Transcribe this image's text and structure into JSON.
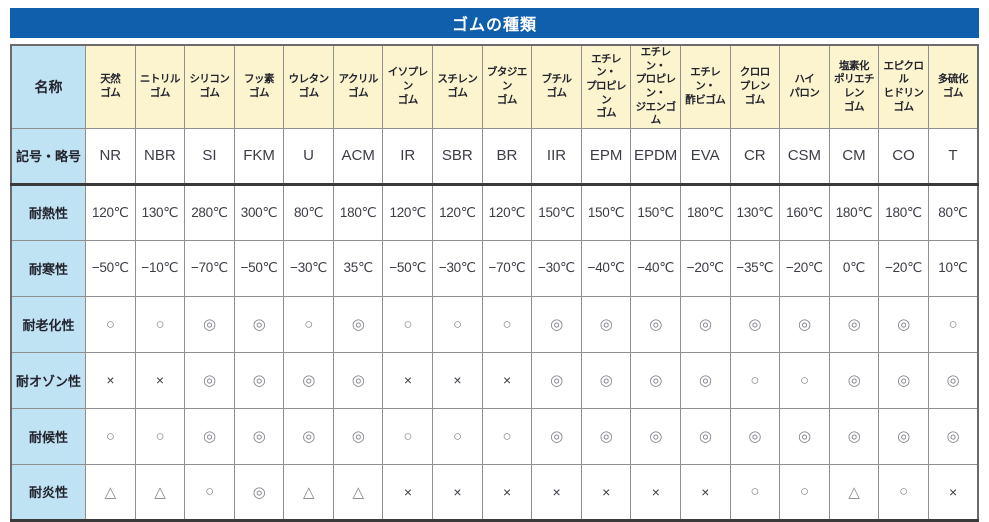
{
  "title": "ゴムの種類",
  "colors": {
    "title_bar_bg": "#0f5fad",
    "title_text": "#ffffff",
    "header_bg": "#fcf4cf",
    "row_label_bg": "#bfe3f3",
    "cell_text": "#3c3c46",
    "symbol_gray": "#83838d",
    "border_gray": "#8f8f8f",
    "heavy_border": "#3a3a3a"
  },
  "legend_symbols": {
    "excellent": "◎",
    "good": "○",
    "fair": "△",
    "poor": "×"
  },
  "table": {
    "corner_label": "名称",
    "columns": [
      "天然\nゴム",
      "ニトリル\nゴム",
      "シリコン\nゴム",
      "フッ素\nゴム",
      "ウレタン\nゴム",
      "アクリル\nゴム",
      "イソプレン\nゴム",
      "スチレン\nゴム",
      "ブタジエン\nゴム",
      "ブチル\nゴム",
      "エチレン・\nプロピレン\nゴム",
      "エチレン・\nプロピレン・\nジエンゴム",
      "エチレン・\n酢ビゴム",
      "クロロ\nプレン\nゴム",
      "ハイ\nパロン",
      "塩素化\nポリエチレン\nゴム",
      "エピクロル\nヒドリン\nゴム",
      "多硫化\nゴム"
    ],
    "rows": [
      {
        "label": "記号・略号",
        "kind": "code",
        "heavy_below": true,
        "values": [
          "NR",
          "NBR",
          "SI",
          "FKM",
          "U",
          "ACM",
          "IR",
          "SBR",
          "BR",
          "IIR",
          "EPM",
          "EPDM",
          "EVA",
          "CR",
          "CSM",
          "CM",
          "CO",
          "T"
        ]
      },
      {
        "label": "耐熱性",
        "kind": "temp",
        "heavy_below": false,
        "values": [
          "120℃",
          "130℃",
          "280℃",
          "300℃",
          "80℃",
          "180℃",
          "120℃",
          "120℃",
          "120℃",
          "150℃",
          "150℃",
          "150℃",
          "180℃",
          "130℃",
          "160℃",
          "180℃",
          "180℃",
          "80℃"
        ]
      },
      {
        "label": "耐寒性",
        "kind": "temp",
        "heavy_below": false,
        "values": [
          "−50℃",
          "−10℃",
          "−70℃",
          "−50℃",
          "−30℃",
          "35℃",
          "−50℃",
          "−30℃",
          "−70℃",
          "−30℃",
          "−40℃",
          "−40℃",
          "−20℃",
          "−35℃",
          "−20℃",
          "0℃",
          "−20℃",
          "10℃"
        ]
      },
      {
        "label": "耐老化性",
        "kind": "symbol",
        "heavy_below": false,
        "values": [
          "○",
          "○",
          "◎",
          "◎",
          "○",
          "◎",
          "○",
          "○",
          "○",
          "◎",
          "◎",
          "◎",
          "◎",
          "◎",
          "◎",
          "◎",
          "◎",
          "○"
        ]
      },
      {
        "label": "耐オゾン性",
        "kind": "symbol",
        "heavy_below": false,
        "values": [
          "×",
          "×",
          "◎",
          "◎",
          "◎",
          "◎",
          "×",
          "×",
          "×",
          "◎",
          "◎",
          "◎",
          "◎",
          "○",
          "○",
          "◎",
          "◎",
          "◎"
        ]
      },
      {
        "label": "耐候性",
        "kind": "symbol",
        "heavy_below": false,
        "values": [
          "○",
          "○",
          "◎",
          "◎",
          "◎",
          "◎",
          "○",
          "○",
          "○",
          "◎",
          "◎",
          "◎",
          "◎",
          "◎",
          "◎",
          "◎",
          "◎",
          "◎"
        ]
      },
      {
        "label": "耐炎性",
        "kind": "symbol",
        "heavy_below": false,
        "values": [
          "△",
          "△",
          "○",
          "◎",
          "△",
          "△",
          "×",
          "×",
          "×",
          "×",
          "×",
          "×",
          "×",
          "○",
          "○",
          "△",
          "○",
          "×"
        ]
      }
    ]
  }
}
